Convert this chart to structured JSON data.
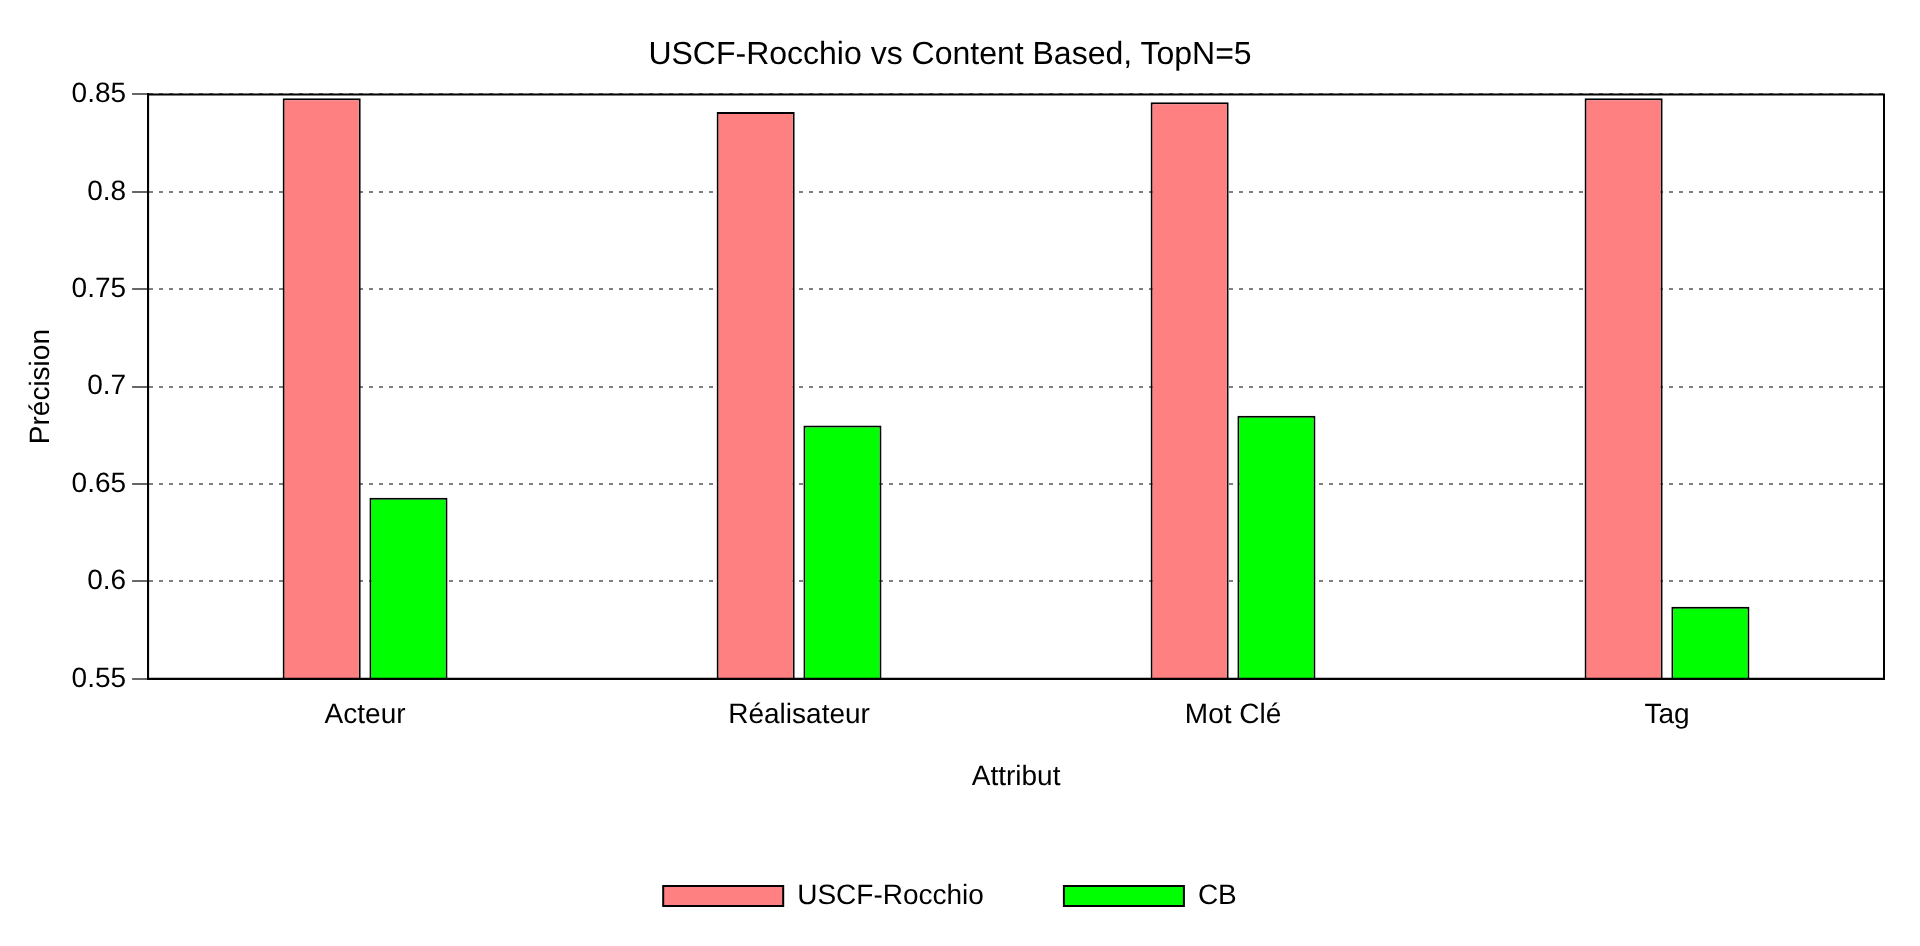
{
  "chart_data": {
    "type": "bar",
    "title": "USCF-Rocchio vs Content Based, TopN=5",
    "xlabel": "Attribut",
    "ylabel": "Précision",
    "categories": [
      "Acteur",
      "Réalisateur",
      "Mot Clé",
      "Tag"
    ],
    "series": [
      {
        "name": "USCF-Rocchio",
        "color": "#ff8080",
        "values": [
          0.848,
          0.841,
          0.846,
          0.848
        ]
      },
      {
        "name": "CB",
        "color": "#00ff00",
        "values": [
          0.643,
          0.68,
          0.685,
          0.587
        ]
      }
    ],
    "ylim": [
      0.55,
      0.85
    ],
    "yticks": [
      0.55,
      0.6,
      0.65,
      0.7,
      0.75,
      0.8,
      0.85
    ],
    "grid": "y",
    "legend": "bottom"
  }
}
